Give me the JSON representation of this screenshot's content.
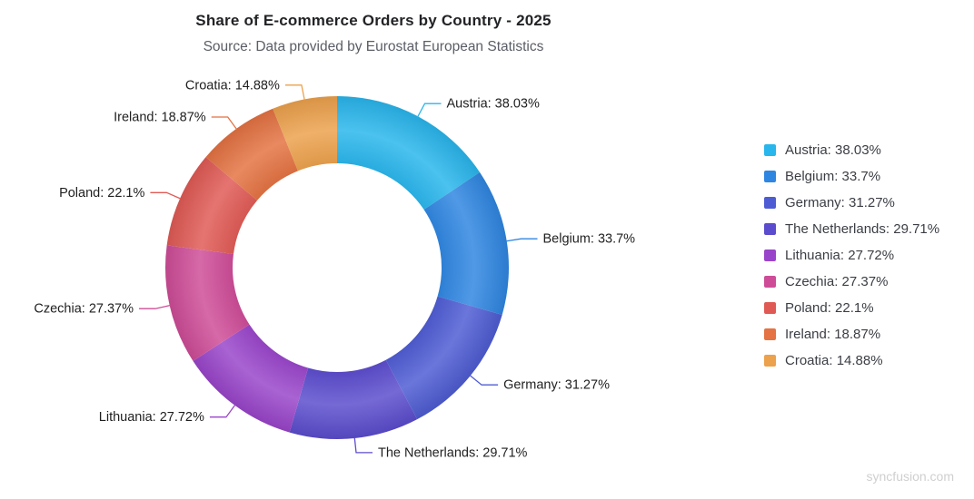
{
  "chart_data": {
    "type": "pie",
    "subtype": "doughnut",
    "title": "Share of E-commerce Orders by Country - 2025",
    "subtitle": "Source: Data provided by Eurostat European Statistics",
    "categories": [
      "Austria",
      "Belgium",
      "Germany",
      "The Netherlands",
      "Lithuania",
      "Czechia",
      "Poland",
      "Ireland",
      "Croatia"
    ],
    "values": [
      38.03,
      33.7,
      31.27,
      29.71,
      27.72,
      27.37,
      22.1,
      18.87,
      14.88
    ],
    "colors": [
      "#29B6EC",
      "#2F86E1",
      "#4E5CD3",
      "#5B4CCD",
      "#9945CA",
      "#CE4C97",
      "#E05A55",
      "#E47242",
      "#ECA14C"
    ],
    "label_format": "{category}: {value}%",
    "legend_position": "right",
    "start_angle_deg": 0,
    "direction": "clockwise",
    "donut_hole_ratio": 0.61,
    "data_labels": "outside-with-connectors"
  },
  "watermark": "syncfusion.com"
}
